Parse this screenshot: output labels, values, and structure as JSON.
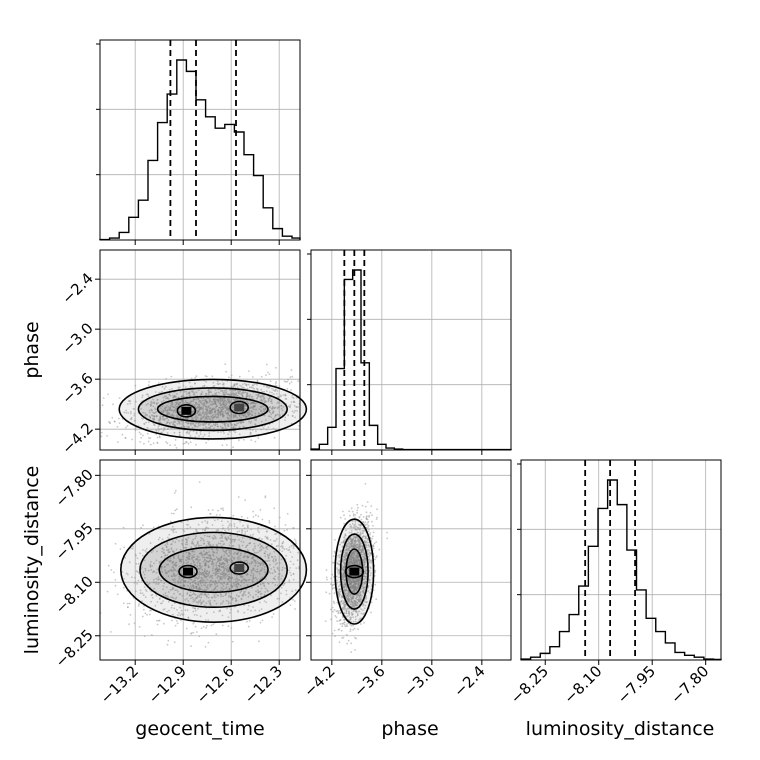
{
  "chart_data": {
    "type": "corner",
    "parameters": [
      "geocent_time",
      "phase",
      "luminosity_distance"
    ],
    "ranges": {
      "geocent_time": [
        -13.42,
        -12.17
      ],
      "phase": [
        -4.45,
        -2.05
      ],
      "luminosity_distance": [
        -8.318,
        -7.757
      ]
    },
    "ticks": {
      "geocent_time": [
        -13.2,
        -12.9,
        -12.6,
        -12.3
      ],
      "phase": [
        -4.2,
        -3.6,
        -3.0,
        -2.4
      ],
      "luminosity_distance": [
        -8.25,
        -8.1,
        -7.95,
        -7.8
      ]
    },
    "tick_labels": {
      "geocent_time": [
        "−13.2",
        "−12.9",
        "−12.6",
        "−12.3"
      ],
      "phase": [
        "−4.2",
        "−3.6",
        "−3.0",
        "−2.4"
      ],
      "luminosity_distance": [
        "−8.25",
        "−8.10",
        "−7.95",
        "−7.80"
      ]
    },
    "quantiles": {
      "geocent_time": [
        -12.98,
        -12.82,
        -12.57
      ],
      "phase": [
        -4.05,
        -3.93,
        -3.81
      ],
      "luminosity_distance": [
        -8.138,
        -8.068,
        -7.998
      ]
    },
    "histograms": {
      "geocent_time": {
        "bin_edges": [
          -13.42,
          -13.36,
          -13.3,
          -13.24,
          -13.18,
          -13.12,
          -13.06,
          -13.0,
          -12.94,
          -12.88,
          -12.82,
          -12.76,
          -12.7,
          -12.64,
          -12.58,
          -12.52,
          -12.46,
          -12.4,
          -12.34,
          -12.28,
          -12.22,
          -12.17
        ],
        "counts": [
          0.2,
          1.0,
          4.0,
          12.0,
          21.0,
          42.0,
          62.0,
          77.0,
          95.0,
          89.0,
          74.0,
          65.0,
          59.0,
          61.0,
          57.0,
          45.0,
          34.0,
          17.0,
          6.0,
          2.0,
          1.0
        ]
      },
      "phase": {
        "bin_edges": [
          -4.45,
          -4.35,
          -4.25,
          -4.15,
          -4.05,
          -3.95,
          -3.85,
          -3.75,
          -3.65,
          -3.55,
          -3.45,
          -3.35,
          -3.25,
          -3.15,
          -3.05,
          -2.95,
          -2.85,
          -2.75,
          -2.65,
          -2.55,
          -2.45,
          -2.35,
          -2.25,
          -2.15,
          -2.05
        ],
        "counts": [
          0.5,
          3.0,
          12.0,
          43.0,
          90.0,
          95.0,
          46.0,
          13.0,
          3.0,
          1.0,
          0.5,
          0.2,
          0.2,
          0.2,
          0.2,
          0.2,
          0.2,
          0.2,
          0.2,
          0.2,
          0.2,
          0.2,
          0.2,
          0.2
        ]
      },
      "luminosity_distance": {
        "bin_edges": [
          -8.318,
          -8.291,
          -8.264,
          -8.237,
          -8.21,
          -8.183,
          -8.156,
          -8.129,
          -8.102,
          -8.075,
          -8.048,
          -8.021,
          -7.994,
          -7.967,
          -7.94,
          -7.913,
          -7.886,
          -7.859,
          -7.832,
          -7.805,
          -7.778,
          -7.757
        ],
        "counts": [
          0.5,
          1.5,
          3.5,
          7.0,
          15.0,
          24.0,
          39.0,
          60.0,
          80.0,
          95.0,
          82.0,
          58.0,
          37.0,
          22.0,
          15.0,
          9.0,
          4.0,
          2.5,
          1.5,
          0.5,
          0.3
        ]
      }
    },
    "joint_modes": {
      "phase_vs_geocent_time": [
        {
          "x": -12.88,
          "y": -3.98
        },
        {
          "x": -12.55,
          "y": -3.94
        }
      ],
      "luminosity_distance_vs_geocent_time": [
        {
          "x": -12.87,
          "y": -8.07
        },
        {
          "x": -12.55,
          "y": -8.06
        }
      ],
      "luminosity_distance_vs_phase": [
        {
          "x": -3.93,
          "y": -8.07
        }
      ]
    },
    "grid": true,
    "colors": {
      "line": "#000000",
      "scatter": "#9a9a9a",
      "grid": "#b0b0b0"
    }
  }
}
